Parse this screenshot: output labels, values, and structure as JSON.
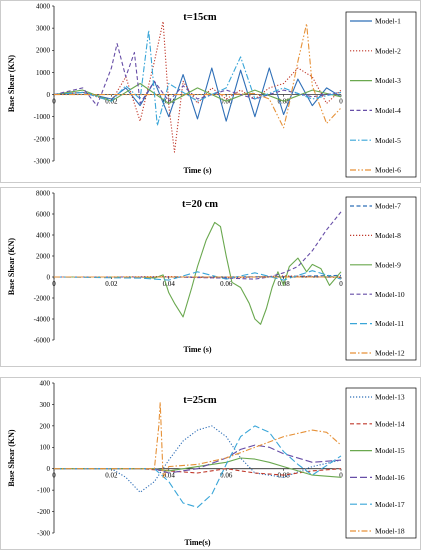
{
  "charts": [
    {
      "title": "t=15cm",
      "xlabel": "Time (s)",
      "ylabel": "Base Shear (KN)",
      "xlim": [
        0,
        0.1
      ],
      "ylim": [
        -3000,
        4000
      ],
      "yticks": [
        -3000,
        -2000,
        -1000,
        0,
        1000,
        2000,
        3000,
        4000
      ],
      "xtick_labels": [
        "0",
        "0.02",
        "0.04",
        "0.06",
        "0.08",
        "0"
      ],
      "series": [
        {
          "name": "Model-1",
          "color": "#2f6fb7",
          "dash": "solid",
          "x": [
            0,
            0.01,
            0.02,
            0.025,
            0.03,
            0.035,
            0.04,
            0.045,
            0.05,
            0.055,
            0.06,
            0.065,
            0.07,
            0.075,
            0.08,
            0.085,
            0.09,
            0.095,
            0.1
          ],
          "y": [
            0,
            100,
            -200,
            300,
            -500,
            600,
            -1000,
            900,
            -1100,
            1200,
            -1200,
            1100,
            -1000,
            1200,
            -900,
            700,
            -500,
            300,
            -100
          ]
        },
        {
          "name": "Model-2",
          "color": "#c0392b",
          "dash": "dot",
          "x": [
            0,
            0.01,
            0.02,
            0.025,
            0.03,
            0.035,
            0.038,
            0.04,
            0.042,
            0.045,
            0.05,
            0.055,
            0.06,
            0.065,
            0.07,
            0.075,
            0.08,
            0.085,
            0.09,
            0.095,
            0.1
          ],
          "y": [
            0,
            100,
            -300,
            800,
            -1200,
            1500,
            3300,
            -500,
            -2600,
            600,
            -400,
            300,
            -200,
            200,
            -200,
            300,
            500,
            1200,
            800,
            -400,
            200
          ]
        },
        {
          "name": "Model-3",
          "color": "#6aa84f",
          "dash": "solid",
          "x": [
            0,
            0.01,
            0.02,
            0.03,
            0.04,
            0.05,
            0.06,
            0.07,
            0.08,
            0.09,
            0.1
          ],
          "y": [
            0,
            200,
            -300,
            500,
            -400,
            300,
            -300,
            200,
            -300,
            200,
            -100
          ]
        },
        {
          "name": "Model-4",
          "color": "#674ea7",
          "dash": "dash",
          "x": [
            0,
            0.01,
            0.015,
            0.02,
            0.022,
            0.025,
            0.028,
            0.03,
            0.035,
            0.04,
            0.045,
            0.05,
            0.06,
            0.07,
            0.08,
            0.09,
            0.1
          ],
          "y": [
            0,
            300,
            -500,
            1200,
            2300,
            800,
            1900,
            -400,
            600,
            -300,
            400,
            -200,
            200,
            -200,
            200,
            -100,
            100
          ]
        },
        {
          "name": "Model-5",
          "color": "#3aa6d8",
          "dash": "dashdot",
          "x": [
            0,
            0.01,
            0.02,
            0.025,
            0.03,
            0.033,
            0.036,
            0.04,
            0.05,
            0.06,
            0.065,
            0.07,
            0.08,
            0.09,
            0.1
          ],
          "y": [
            0,
            100,
            -300,
            400,
            -200,
            2900,
            -1400,
            500,
            -300,
            300,
            1700,
            -200,
            300,
            -200,
            100
          ]
        },
        {
          "name": "Model-6",
          "color": "#e69138",
          "dash": "dashdotdot",
          "x": [
            0,
            0.02,
            0.04,
            0.06,
            0.07,
            0.075,
            0.08,
            0.082,
            0.085,
            0.088,
            0.09,
            0.095,
            0.1
          ],
          "y": [
            0,
            0,
            0,
            0,
            50,
            -200,
            -1500,
            -400,
            1500,
            3200,
            400,
            -1300,
            -600
          ]
        }
      ]
    },
    {
      "title": "t=20 cm",
      "xlabel": "Time (s)",
      "ylabel": "Base Shear (KN)",
      "xlim": [
        0,
        0.1
      ],
      "ylim": [
        -6000,
        8000
      ],
      "yticks": [
        -6000,
        -4000,
        -2000,
        0,
        2000,
        4000,
        6000,
        8000
      ],
      "xtick_labels": [
        "0",
        "0.02",
        "0.04",
        "0.06",
        "0.08",
        "0"
      ],
      "series": [
        {
          "name": "Model-7",
          "color": "#2f6fb7",
          "dash": "dash",
          "x": [
            0,
            0.02,
            0.04,
            0.06,
            0.08,
            0.09,
            0.1
          ],
          "y": [
            0,
            0,
            0,
            0,
            50,
            100,
            150
          ]
        },
        {
          "name": "Model-8",
          "color": "#c0392b",
          "dash": "dot",
          "x": [
            0,
            0.02,
            0.04,
            0.06,
            0.08,
            0.1
          ],
          "y": [
            0,
            0,
            50,
            -100,
            100,
            -50
          ]
        },
        {
          "name": "Model-9",
          "color": "#6aa84f",
          "dash": "solid",
          "x": [
            0,
            0.03,
            0.035,
            0.038,
            0.04,
            0.042,
            0.045,
            0.048,
            0.05,
            0.053,
            0.056,
            0.058,
            0.06,
            0.062,
            0.065,
            0.068,
            0.07,
            0.072,
            0.074,
            0.076,
            0.078,
            0.08,
            0.082,
            0.085,
            0.088,
            0.09,
            0.093,
            0.096,
            0.1
          ],
          "y": [
            0,
            0,
            -100,
            200,
            -1500,
            -2500,
            -3800,
            -1000,
            1000,
            3500,
            5200,
            4800,
            2000,
            -500,
            -1000,
            -2500,
            -4000,
            -4500,
            -3000,
            -1000,
            500,
            -800,
            1000,
            1800,
            500,
            1200,
            800,
            -800,
            500
          ]
        },
        {
          "name": "Model-10",
          "color": "#674ea7",
          "dash": "dash",
          "x": [
            0,
            0.04,
            0.06,
            0.07,
            0.075,
            0.08,
            0.085,
            0.09,
            0.095,
            0.1
          ],
          "y": [
            0,
            0,
            -100,
            -200,
            0,
            400,
            1000,
            2500,
            4500,
            6200
          ]
        },
        {
          "name": "Model-11",
          "color": "#3aa6d8",
          "dash": "longdash",
          "x": [
            0,
            0.03,
            0.04,
            0.05,
            0.06,
            0.07,
            0.08,
            0.09,
            0.1
          ],
          "y": [
            0,
            -100,
            -300,
            500,
            -200,
            400,
            -300,
            600,
            -200
          ]
        },
        {
          "name": "Model-12",
          "color": "#e69138",
          "dash": "dashdot",
          "x": [
            0,
            0.02,
            0.04,
            0.06,
            0.08,
            0.1
          ],
          "y": [
            0,
            0,
            0,
            0,
            0,
            0
          ]
        }
      ]
    },
    {
      "title": "t=25cm",
      "xlabel": "Time(s)",
      "ylabel": "Base Shear (KN)",
      "xlim": [
        0,
        0.1
      ],
      "ylim": [
        -300,
        400
      ],
      "yticks": [
        -300,
        -200,
        -100,
        0,
        100,
        200,
        300,
        400
      ],
      "xtick_labels": [
        "0",
        "0.02",
        "0.04",
        "0.06",
        "0.08",
        "0"
      ],
      "series": [
        {
          "name": "Model-13",
          "color": "#2f6fb7",
          "dash": "dot",
          "x": [
            0,
            0.02,
            0.025,
            0.03,
            0.035,
            0.04,
            0.045,
            0.05,
            0.055,
            0.06,
            0.065,
            0.07,
            0.08,
            0.09,
            0.1
          ],
          "y": [
            0,
            0,
            -40,
            -110,
            -60,
            40,
            130,
            180,
            200,
            150,
            50,
            -20,
            -40,
            10,
            40
          ]
        },
        {
          "name": "Model-14",
          "color": "#c0392b",
          "dash": "dash",
          "x": [
            0,
            0.03,
            0.04,
            0.05,
            0.06,
            0.07,
            0.08,
            0.09,
            0.1
          ],
          "y": [
            0,
            0,
            -10,
            -20,
            0,
            -20,
            -30,
            -10,
            0
          ]
        },
        {
          "name": "Model-15",
          "color": "#6aa84f",
          "dash": "solid",
          "x": [
            0,
            0.035,
            0.04,
            0.05,
            0.06,
            0.065,
            0.07,
            0.075,
            0.08,
            0.09,
            0.1
          ],
          "y": [
            0,
            0,
            -10,
            10,
            30,
            50,
            45,
            30,
            10,
            -30,
            -40
          ]
        },
        {
          "name": "Model-16",
          "color": "#674ea7",
          "dash": "longdash",
          "x": [
            0,
            0.035,
            0.04,
            0.05,
            0.06,
            0.065,
            0.07,
            0.075,
            0.08,
            0.09,
            0.1
          ],
          "y": [
            0,
            0,
            -20,
            0,
            50,
            90,
            110,
            100,
            70,
            30,
            40
          ]
        },
        {
          "name": "Model-17",
          "color": "#3aa6d8",
          "dash": "longdash",
          "x": [
            0,
            0.035,
            0.04,
            0.045,
            0.05,
            0.055,
            0.06,
            0.065,
            0.07,
            0.075,
            0.08,
            0.085,
            0.09,
            0.1
          ],
          "y": [
            0,
            0,
            -60,
            -160,
            -180,
            -120,
            20,
            150,
            200,
            170,
            80,
            20,
            -30,
            60
          ]
        },
        {
          "name": "Model-18",
          "color": "#e69138",
          "dash": "dashdot",
          "x": [
            0,
            0.035,
            0.0365,
            0.037,
            0.038,
            0.04,
            0.05,
            0.06,
            0.07,
            0.08,
            0.09,
            0.095,
            0.1
          ],
          "y": [
            0,
            0,
            200,
            310,
            -40,
            10,
            20,
            50,
            100,
            150,
            180,
            170,
            110
          ]
        }
      ]
    }
  ]
}
